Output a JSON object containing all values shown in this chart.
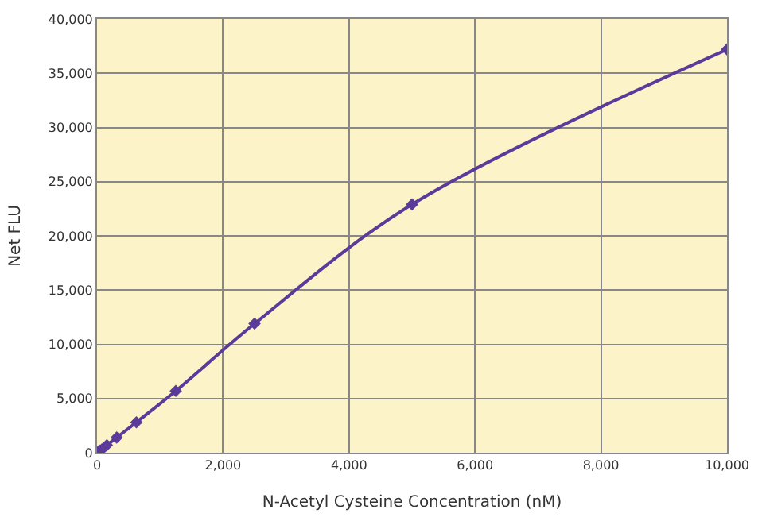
{
  "chart_data": {
    "type": "line",
    "xlabel": "N-Acetyl Cysteine Concentration (nM)",
    "ylabel": "Net FLU",
    "x": [
      0,
      39,
      78,
      156,
      312,
      625,
      1250,
      2500,
      5000,
      10000
    ],
    "series": [
      {
        "color": "#5b3a9a",
        "values": [
          0,
          200,
          300,
          700,
          1400,
          2800,
          5700,
          11900,
          22900,
          37200
        ]
      }
    ],
    "xlim": [
      0,
      10000
    ],
    "xticks": [
      {
        "value": 0,
        "label": "0"
      },
      {
        "value": 2000,
        "label": "2,000"
      },
      {
        "value": 4000,
        "label": "4,000"
      },
      {
        "value": 6000,
        "label": "6,000"
      },
      {
        "value": 8000,
        "label": "8,000"
      },
      {
        "value": 10000,
        "label": "10,000"
      }
    ],
    "ylim": [
      0,
      40000
    ],
    "yticks": [
      {
        "value": 0,
        "label": "0"
      },
      {
        "value": 5000,
        "label": "5,000"
      },
      {
        "value": 10000,
        "label": "10,000"
      },
      {
        "value": 15000,
        "label": "15,000"
      },
      {
        "value": 20000,
        "label": "20,000"
      },
      {
        "value": 25000,
        "label": "25,000"
      },
      {
        "value": 30000,
        "label": "30,000"
      },
      {
        "value": 35000,
        "label": "35,000"
      },
      {
        "value": 40000,
        "label": "40,000"
      }
    ],
    "grid": true,
    "marker": "diamond",
    "line_style": "solid"
  }
}
